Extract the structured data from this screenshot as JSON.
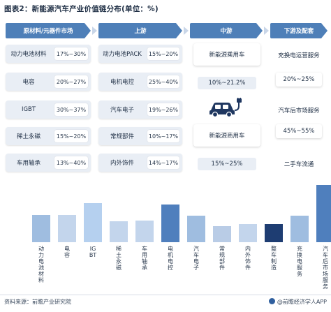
{
  "title": "图表2：新能源汽车产业价值链分布(单位：%)",
  "columns": {
    "raw": "原材料/元器件市场",
    "up": "上游",
    "mid": "中游",
    "down": "下游及配套"
  },
  "raw_items": [
    {
      "label": "动力电池材料",
      "value": "17%~30%"
    },
    {
      "label": "电容",
      "value": "20%~27%"
    },
    {
      "label": "IGBT",
      "value": "30%~37%"
    },
    {
      "label": "稀土永磁",
      "value": "15%~20%"
    },
    {
      "label": "车用轴承",
      "value": "13%~40%"
    }
  ],
  "up_items": [
    {
      "label": "动力电池PACK",
      "value": "15%~20%"
    },
    {
      "label": "电机电控",
      "value": "25%~40%"
    },
    {
      "label": "汽车电子",
      "value": "19%~26%"
    },
    {
      "label": "常规部件",
      "value": "10%~17%"
    },
    {
      "label": "内外饰件",
      "value": "14%~17%"
    }
  ],
  "mid_items": [
    {
      "label": "新能源乘用车",
      "value": "10%~21.2%"
    },
    {
      "label": "新能源商用车",
      "value": "15%~25%"
    }
  ],
  "down_items": [
    {
      "label": "充换电运营服务",
      "value": "20%~25%"
    },
    {
      "label": "汽车后市场服务",
      "value": "45%~55%"
    },
    {
      "label": "二手车流通",
      "value": ""
    }
  ],
  "icons": [
    "ev-car-charging-icon"
  ],
  "chart_data": {
    "type": "bar",
    "categories": [
      "动力电池材料",
      "电容",
      "IGBT",
      "稀土永磁",
      "车用轴承",
      "电机电控",
      "汽车电子",
      "常规部件",
      "内外饰件",
      "整车制造",
      "充换电服务",
      "汽车后市场服务"
    ],
    "values": [
      24,
      24,
      34,
      18,
      19,
      33,
      23,
      14,
      16,
      16,
      23,
      50
    ],
    "colors": [
      "#9fbde0",
      "#c3d5ec",
      "#b5d0ef",
      "#c3d5ec",
      "#c3d5ec",
      "#4f7fbd",
      "#9fbde0",
      "#b9cce6",
      "#c3d5ec",
      "#1e3d72",
      "#9fbde0",
      "#4f7fbd"
    ]
  },
  "footer": {
    "source": "资料来源：前瞻产业研究院",
    "brand": "@前瞻经济学人APP"
  }
}
